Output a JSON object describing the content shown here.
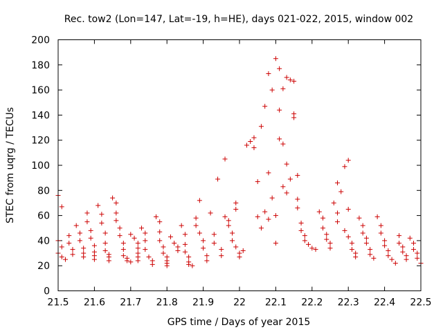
{
  "chart_data": {
    "type": "scatter",
    "title": "Rec. tow2 (Lon=147, Lat=-19, h=HE), days 021-022, 2015, window 002",
    "xlabel": "GPS time / Days of year 2015",
    "ylabel": "STEC from uqrg / TECUs",
    "xlim": [
      21.5,
      22.5
    ],
    "ylim": [
      0,
      200
    ],
    "xticks": [
      21.5,
      21.6,
      21.7,
      21.8,
      21.9,
      22,
      22.1,
      22.2,
      22.3,
      22.4,
      22.5
    ],
    "xtick_labels": [
      "21.5",
      "21.6",
      "21.7",
      "21.8",
      "21.9",
      "22",
      "22.1",
      "22.2",
      "22.3",
      "22.4",
      "22.5"
    ],
    "yticks": [
      0,
      20,
      40,
      60,
      80,
      100,
      120,
      140,
      160,
      180,
      200
    ],
    "ytick_labels": [
      "0",
      "20",
      "40",
      "60",
      "80",
      "100",
      "120",
      "140",
      "160",
      "180",
      "200"
    ],
    "grid": false,
    "legend": "none",
    "marker": "+",
    "color": "#cc0000",
    "series": [
      {
        "name": "STEC",
        "points": [
          [
            21.5,
            76
          ],
          [
            21.51,
            67
          ],
          [
            21.5,
            40
          ],
          [
            21.51,
            35
          ],
          [
            21.5,
            30
          ],
          [
            21.51,
            27
          ],
          [
            21.52,
            25
          ],
          [
            21.53,
            44
          ],
          [
            21.53,
            38
          ],
          [
            21.54,
            33
          ],
          [
            21.54,
            29
          ],
          [
            21.55,
            52
          ],
          [
            21.56,
            46
          ],
          [
            21.56,
            40
          ],
          [
            21.57,
            34
          ],
          [
            21.57,
            30
          ],
          [
            21.57,
            27
          ],
          [
            21.58,
            62
          ],
          [
            21.58,
            55
          ],
          [
            21.59,
            48
          ],
          [
            21.59,
            42
          ],
          [
            21.6,
            36
          ],
          [
            21.6,
            31
          ],
          [
            21.6,
            28
          ],
          [
            21.6,
            25
          ],
          [
            21.61,
            68
          ],
          [
            21.62,
            61
          ],
          [
            21.62,
            54
          ],
          [
            21.63,
            46
          ],
          [
            21.63,
            38
          ],
          [
            21.63,
            32
          ],
          [
            21.64,
            29
          ],
          [
            21.64,
            27
          ],
          [
            21.64,
            24
          ],
          [
            21.65,
            74
          ],
          [
            21.66,
            70
          ],
          [
            21.66,
            62
          ],
          [
            21.66,
            56
          ],
          [
            21.67,
            50
          ],
          [
            21.67,
            44
          ],
          [
            21.68,
            38
          ],
          [
            21.68,
            33
          ],
          [
            21.68,
            28
          ],
          [
            21.69,
            26
          ],
          [
            21.69,
            24
          ],
          [
            21.7,
            23
          ],
          [
            21.7,
            45
          ],
          [
            21.71,
            42
          ],
          [
            21.72,
            38
          ],
          [
            21.72,
            34
          ],
          [
            21.72,
            30
          ],
          [
            21.72,
            27
          ],
          [
            21.72,
            24
          ],
          [
            21.73,
            50
          ],
          [
            21.74,
            46
          ],
          [
            21.74,
            40
          ],
          [
            21.74,
            33
          ],
          [
            21.75,
            27
          ],
          [
            21.76,
            24
          ],
          [
            21.76,
            21
          ],
          [
            21.77,
            59
          ],
          [
            21.78,
            55
          ],
          [
            21.78,
            47
          ],
          [
            21.78,
            40
          ],
          [
            21.79,
            35
          ],
          [
            21.79,
            30
          ],
          [
            21.8,
            27
          ],
          [
            21.8,
            24
          ],
          [
            21.8,
            22
          ],
          [
            21.8,
            20
          ],
          [
            21.81,
            43
          ],
          [
            21.82,
            38
          ],
          [
            21.83,
            35
          ],
          [
            21.83,
            32
          ],
          [
            21.84,
            52
          ],
          [
            21.85,
            45
          ],
          [
            21.85,
            37
          ],
          [
            21.85,
            31
          ],
          [
            21.86,
            27
          ],
          [
            21.86,
            23
          ],
          [
            21.86,
            21
          ],
          [
            21.87,
            20
          ],
          [
            21.88,
            58
          ],
          [
            21.88,
            52
          ],
          [
            21.89,
            72
          ],
          [
            21.89,
            46
          ],
          [
            21.9,
            40
          ],
          [
            21.9,
            34
          ],
          [
            21.91,
            28
          ],
          [
            21.91,
            24
          ],
          [
            21.92,
            62
          ],
          [
            21.93,
            45
          ],
          [
            21.93,
            38
          ],
          [
            21.94,
            89
          ],
          [
            21.95,
            33
          ],
          [
            21.95,
            28
          ],
          [
            21.96,
            105
          ],
          [
            21.96,
            59
          ],
          [
            21.97,
            56
          ],
          [
            21.97,
            52
          ],
          [
            21.98,
            46
          ],
          [
            21.98,
            40
          ],
          [
            21.99,
            70
          ],
          [
            21.99,
            65
          ],
          [
            21.99,
            35
          ],
          [
            22,
            30
          ],
          [
            22,
            27
          ],
          [
            22.01,
            32
          ],
          [
            22.02,
            116
          ],
          [
            22.03,
            119
          ],
          [
            22.04,
            114
          ],
          [
            22.04,
            122
          ],
          [
            22.05,
            59
          ],
          [
            22.05,
            87
          ],
          [
            22.06,
            131
          ],
          [
            22.06,
            50
          ],
          [
            22.07,
            147
          ],
          [
            22.07,
            63
          ],
          [
            22.08,
            173
          ],
          [
            22.08,
            94
          ],
          [
            22.08,
            57
          ],
          [
            22.09,
            74
          ],
          [
            22.09,
            160
          ],
          [
            22.1,
            185
          ],
          [
            22.1,
            60
          ],
          [
            22.1,
            38
          ],
          [
            22.11,
            177
          ],
          [
            22.11,
            144
          ],
          [
            22.11,
            121
          ],
          [
            22.12,
            161
          ],
          [
            22.12,
            117
          ],
          [
            22.12,
            83
          ],
          [
            22.13,
            170
          ],
          [
            22.13,
            101
          ],
          [
            22.13,
            78
          ],
          [
            22.14,
            168
          ],
          [
            22.14,
            89
          ],
          [
            22.15,
            141
          ],
          [
            22.15,
            138
          ],
          [
            22.15,
            167
          ],
          [
            22.16,
            92
          ],
          [
            22.16,
            73
          ],
          [
            22.16,
            66
          ],
          [
            22.17,
            54
          ],
          [
            22.17,
            48
          ],
          [
            22.18,
            44
          ],
          [
            22.18,
            40
          ],
          [
            22.19,
            37
          ],
          [
            22.2,
            34
          ],
          [
            22.21,
            33
          ],
          [
            22.22,
            63
          ],
          [
            22.23,
            58
          ],
          [
            22.23,
            50
          ],
          [
            22.24,
            45
          ],
          [
            22.24,
            41
          ],
          [
            22.25,
            38
          ],
          [
            22.25,
            34
          ],
          [
            22.26,
            70
          ],
          [
            22.27,
            62
          ],
          [
            22.27,
            55
          ],
          [
            22.27,
            86
          ],
          [
            22.28,
            79
          ],
          [
            22.29,
            99
          ],
          [
            22.29,
            48
          ],
          [
            22.3,
            104
          ],
          [
            22.3,
            65
          ],
          [
            22.3,
            43
          ],
          [
            22.31,
            38
          ],
          [
            22.31,
            33
          ],
          [
            22.32,
            30
          ],
          [
            22.32,
            27
          ],
          [
            22.33,
            58
          ],
          [
            22.34,
            52
          ],
          [
            22.34,
            46
          ],
          [
            22.35,
            42
          ],
          [
            22.35,
            38
          ],
          [
            22.36,
            33
          ],
          [
            22.36,
            29
          ],
          [
            22.37,
            26
          ],
          [
            22.38,
            59
          ],
          [
            22.39,
            52
          ],
          [
            22.39,
            46
          ],
          [
            22.4,
            40
          ],
          [
            22.4,
            36
          ],
          [
            22.41,
            32
          ],
          [
            22.41,
            28
          ],
          [
            22.42,
            25
          ],
          [
            22.43,
            22
          ],
          [
            22.44,
            44
          ],
          [
            22.44,
            38
          ],
          [
            22.45,
            35
          ],
          [
            22.45,
            31
          ],
          [
            22.46,
            28
          ],
          [
            22.46,
            25
          ],
          [
            22.47,
            42
          ],
          [
            22.48,
            38
          ],
          [
            22.48,
            33
          ],
          [
            22.49,
            30
          ],
          [
            22.49,
            26
          ],
          [
            22.5,
            22
          ]
        ]
      }
    ]
  }
}
